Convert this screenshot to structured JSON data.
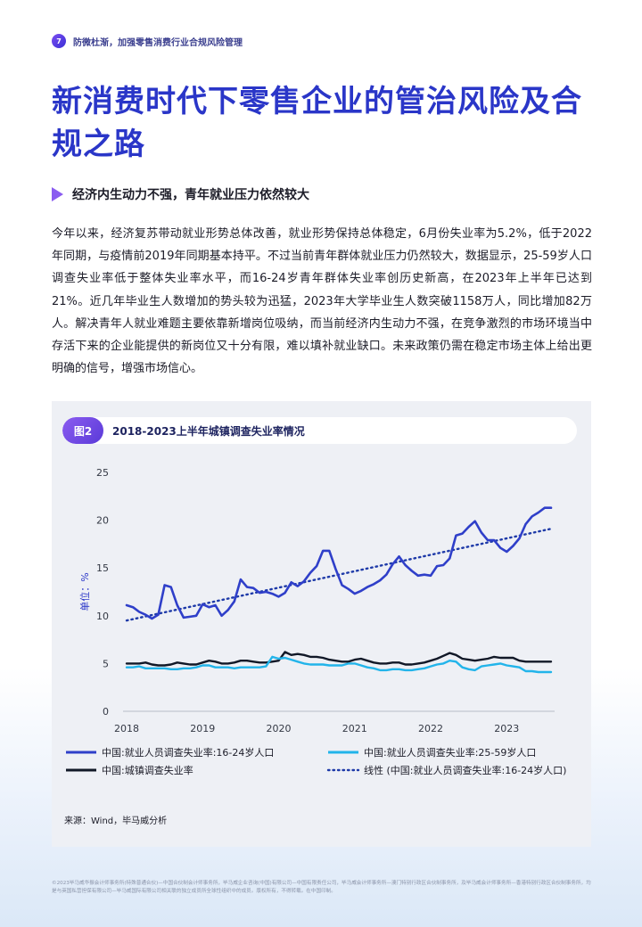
{
  "header": {
    "page_number": "7",
    "running_title": "防微杜渐，加强零售消费行业合规风险管理"
  },
  "title": "新消费时代下零售企业的管治风险及合规之路",
  "section": {
    "heading": "经济内生动力不强，青年就业压力依然较大",
    "paragraph": "今年以来，经济复苏带动就业形势总体改善，就业形势保持总体稳定，6月份失业率为5.2%，低于2022年同期，与疫情前2019年同期基本持平。不过当前青年群体就业压力仍然较大，数据显示，25-59岁人口调查失业率低于整体失业率水平，而16-24岁青年群体失业率创历史新高，在2023年上半年已达到21%。近几年毕业生人数增加的势头较为迅猛，2023年大学毕业生人数突破1158万人，同比增加82万人。解决青年人就业难题主要依靠新增岗位吸纳，而当前经济内生动力不强，在竞争激烈的市场环境当中存活下来的企业能提供的新岗位又十分有限，难以填补就业缺口。未来政策仍需在稳定市场主体上给出更明确的信号，增强市场信心。"
  },
  "figure": {
    "label": "图2",
    "title": "2018-2023上半年城镇调查失业率情况",
    "source": "来源：Wind，毕马威分析"
  },
  "chart_data": {
    "type": "line",
    "ylabel": "单位：%",
    "ylim": [
      0,
      25
    ],
    "yticks": [
      "0",
      "5",
      "10",
      "15",
      "20",
      "25"
    ],
    "xticks": [
      "2018",
      "2019",
      "2020",
      "2021",
      "2022",
      "2023"
    ],
    "legend_position": "bottom",
    "series": [
      {
        "name": "中国:就业人员调查失业率:16-24岁人口",
        "color": "#2f3fc9",
        "style": "solid",
        "values": [
          11.1,
          10.9,
          10.4,
          10.1,
          9.7,
          10.1,
          13.2,
          13.0,
          11.1,
          9.8,
          9.9,
          10.0,
          11.2,
          10.9,
          11.1,
          10.0,
          10.6,
          11.5,
          13.8,
          13.0,
          12.9,
          12.4,
          12.5,
          12.3,
          12.0,
          12.4,
          13.5,
          13.1,
          13.6,
          14.5,
          15.2,
          16.8,
          16.8,
          14.9,
          13.2,
          12.8,
          12.3,
          12.6,
          13.0,
          13.3,
          13.7,
          14.3,
          15.4,
          16.2,
          15.3,
          14.7,
          14.2,
          14.3,
          14.2,
          15.2,
          15.3,
          16.0,
          18.4,
          18.6,
          19.3,
          19.9,
          18.7,
          17.9,
          17.9,
          17.1,
          16.7,
          17.3,
          18.1,
          19.6,
          20.4,
          20.8,
          21.3,
          21.3
        ]
      },
      {
        "name": "中国:就业人员调查失业率:25-59岁人口",
        "color": "#22b4ea",
        "style": "solid",
        "values": [
          4.6,
          4.6,
          4.7,
          4.5,
          4.5,
          4.5,
          4.5,
          4.4,
          4.4,
          4.5,
          4.5,
          4.6,
          4.8,
          4.8,
          4.6,
          4.6,
          4.6,
          4.5,
          4.6,
          4.6,
          4.6,
          4.6,
          4.7,
          5.7,
          5.5,
          5.6,
          5.4,
          5.2,
          5.0,
          4.9,
          4.9,
          4.9,
          4.8,
          4.8,
          4.8,
          5.0,
          5.0,
          4.8,
          4.6,
          4.5,
          4.3,
          4.3,
          4.4,
          4.4,
          4.3,
          4.3,
          4.4,
          4.5,
          4.7,
          4.9,
          5.0,
          5.3,
          5.2,
          4.6,
          4.4,
          4.3,
          4.7,
          4.8,
          4.9,
          5.0,
          4.8,
          4.7,
          4.6,
          4.2,
          4.2,
          4.1,
          4.1,
          4.1
        ]
      },
      {
        "name": "中国:城镇调查失业率",
        "color": "#111827",
        "style": "solid",
        "values": [
          5.0,
          5.0,
          5.0,
          5.1,
          4.9,
          4.8,
          4.8,
          4.9,
          5.1,
          5.0,
          4.9,
          4.9,
          5.1,
          5.3,
          5.2,
          5.0,
          5.0,
          5.1,
          5.3,
          5.3,
          5.2,
          5.1,
          5.1,
          5.2,
          5.3,
          6.2,
          5.9,
          6.0,
          5.9,
          5.7,
          5.7,
          5.6,
          5.4,
          5.3,
          5.2,
          5.2,
          5.4,
          5.5,
          5.3,
          5.1,
          5.0,
          5.0,
          5.1,
          5.1,
          4.9,
          4.9,
          5.0,
          5.1,
          5.3,
          5.5,
          5.8,
          6.1,
          5.9,
          5.5,
          5.4,
          5.3,
          5.4,
          5.5,
          5.7,
          5.6,
          5.6,
          5.6,
          5.3,
          5.2,
          5.2,
          5.2,
          5.2,
          5.2
        ]
      }
    ],
    "trendline": {
      "name": "线性 (中国:就业人员调查失业率:16-24岁人口)",
      "color": "#1e3aa8",
      "style": "dotted",
      "start": 9.5,
      "end": 19.1
    }
  },
  "footer": "©2023毕马威华振会计师事务所(特殊普通合伙)—中国合伙制会计师事务所，毕马威企业咨询(中国)有限公司—中国有限责任公司，毕马威会计师事务所—澳门特别行政区合伙制事务所，及毕马威会计师事务所—香港特别行政区合伙制事务所，均是与英国私营担保有限公司—毕马威国际有限公司相关联的独立成员所全球性组织中的成员。版权所有，不得转载。在中国印制。"
}
